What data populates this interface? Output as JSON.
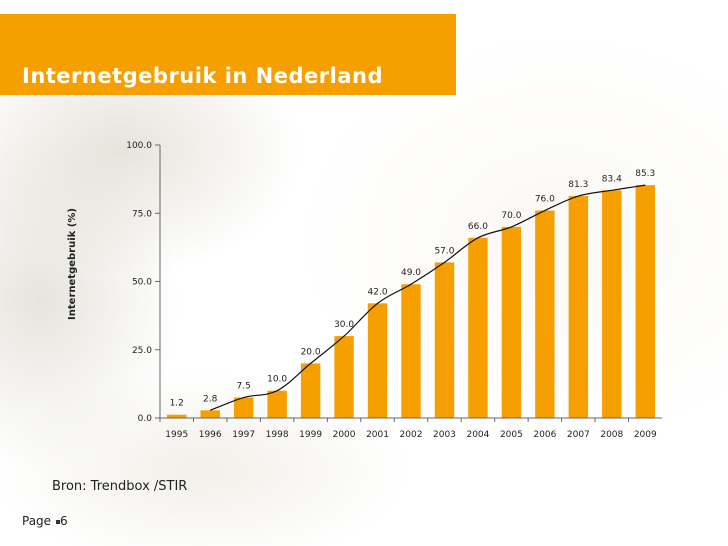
{
  "slide": {
    "title": "Internetgebruik in Nederland",
    "source": "Bron: Trendbox /STIR",
    "page_label": "Page",
    "page_number": "6"
  },
  "colors": {
    "accent": "#f5a000",
    "bar": "#f5a000",
    "trend_line": "#111111",
    "axis": "#666666",
    "text": "#222222"
  },
  "chart_data": {
    "type": "bar",
    "title": "",
    "xlabel": "",
    "ylabel": "Internetgebruik (%)",
    "ylim": [
      0,
      100
    ],
    "yticks": [
      "0.0",
      "25.0",
      "50.0",
      "75.0",
      "100.0"
    ],
    "ytick_values": [
      0,
      25,
      50,
      75,
      100
    ],
    "categories": [
      "1995",
      "1996",
      "1997",
      "1998",
      "1999",
      "2000",
      "2001",
      "2002",
      "2003",
      "2004",
      "2005",
      "2006",
      "2007",
      "2008",
      "2009"
    ],
    "series": [
      {
        "values": [
          1.2,
          2.8,
          7.5,
          10.0,
          20.0,
          30.0,
          42.0,
          49.0,
          57.0,
          66.0,
          70.0,
          76.0,
          81.3,
          83.4,
          85.3
        ],
        "labels": [
          "1.2",
          "2.8",
          "7.5",
          "10.0",
          "20.0",
          "30.0",
          "42.0",
          "49.0",
          "57.0",
          "66.0",
          "70.0",
          "76.0",
          "81.3",
          "83.4",
          "85.3"
        ]
      }
    ],
    "trend_line": true,
    "trend_line_starts_at": "1996",
    "grid": false,
    "legend": "none"
  }
}
